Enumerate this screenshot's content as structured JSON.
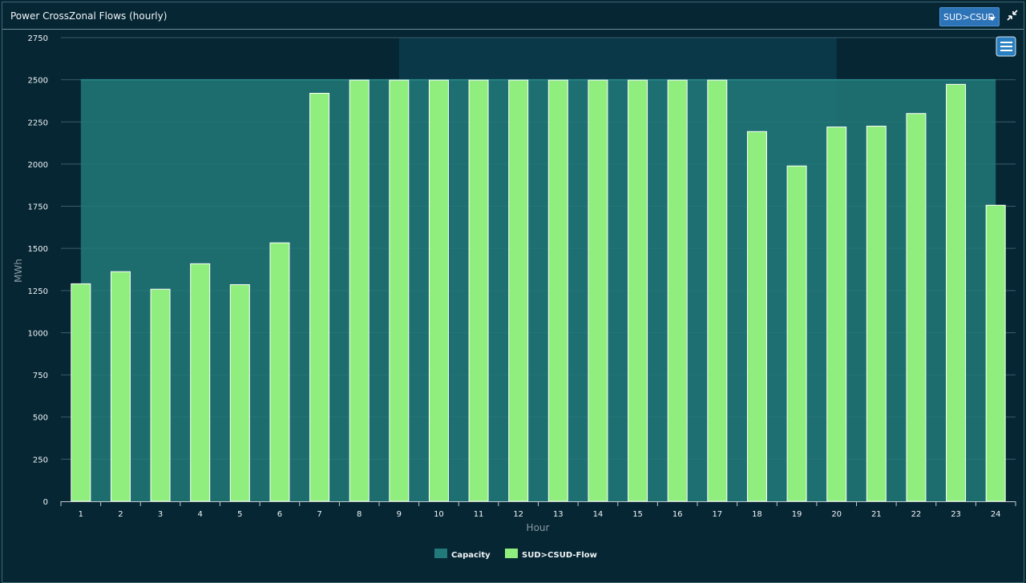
{
  "header": {
    "title": "Power CrossZonal Flows (hourly)",
    "zone_selector": "SUD>CSUD"
  },
  "icons": {
    "collapse": "collapse-arrows-icon",
    "menu": "hamburger-menu-icon"
  },
  "colors": {
    "background": "#062634",
    "capacity": "#227979",
    "flow": "#90ee7e",
    "plot_band": "#0b3849",
    "grid": "#3a5c69",
    "selector": "#2d73b8"
  },
  "chart_data": {
    "type": "bar",
    "xlabel": "Hour",
    "ylabel": "MWh",
    "ylim": [
      0,
      2750
    ],
    "yticks": [
      0,
      250,
      500,
      750,
      1000,
      1250,
      1500,
      1750,
      2000,
      2250,
      2500,
      2750
    ],
    "categories": [
      "1",
      "2",
      "3",
      "4",
      "5",
      "6",
      "7",
      "8",
      "9",
      "10",
      "11",
      "12",
      "13",
      "14",
      "15",
      "16",
      "17",
      "18",
      "19",
      "20",
      "21",
      "22",
      "23",
      "24"
    ],
    "plot_band": {
      "from": "9",
      "to": "20"
    },
    "grid": true,
    "legend_position": "bottom-center",
    "series": [
      {
        "name": "Capacity",
        "type": "area",
        "color": "#227979",
        "values": [
          2500,
          2500,
          2500,
          2500,
          2500,
          2500,
          2500,
          2500,
          2500,
          2500,
          2500,
          2500,
          2500,
          2500,
          2500,
          2500,
          2500,
          2500,
          2500,
          2500,
          2500,
          2500,
          2500,
          2500
        ]
      },
      {
        "name": "SUD>CSUD-Flow",
        "type": "bar",
        "color": "#90ee7e",
        "values": [
          1290,
          1362,
          1258,
          1409,
          1285,
          1533,
          2420,
          2498,
          2498,
          2498,
          2498,
          2498,
          2498,
          2498,
          2498,
          2498,
          2498,
          2193,
          1989,
          2220,
          2225,
          2300,
          2473,
          1756
        ]
      }
    ]
  }
}
